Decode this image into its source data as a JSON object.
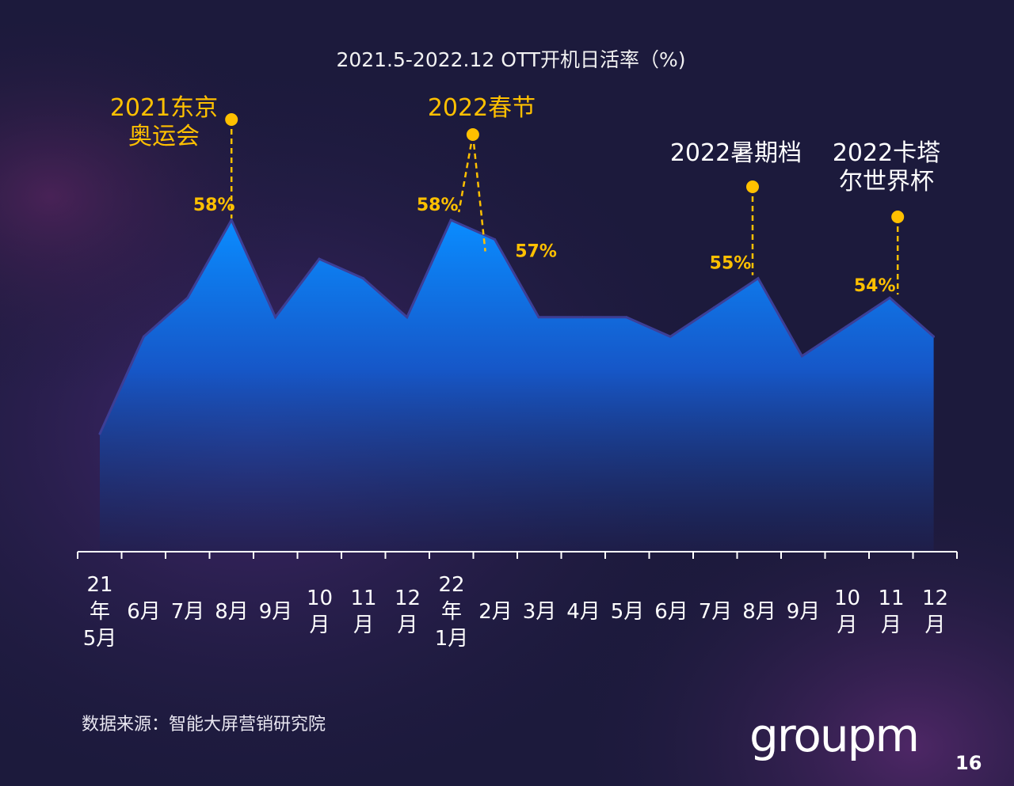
{
  "title": "2021.5-2022.12 OTT开机日活率（%)",
  "source": "数据来源：智能大屏营销研究院",
  "logo": "groupm",
  "page_number": "16",
  "colors": {
    "accent": "#ffc000",
    "area_top": "#0a8cff",
    "area_bottom": "#1e2050",
    "background": "#1c1a3c"
  },
  "chart_data": {
    "type": "area",
    "title": "2021.5-2022.12 OTT开机日活率（%)",
    "categories": [
      "21\n年\n5月",
      "6月",
      "7月",
      "8月",
      "9月",
      "10\n月",
      "11\n月",
      "12\n月",
      "22\n年\n1月",
      "2月",
      "3月",
      "4月",
      "5月",
      "6月",
      "7月",
      "8月",
      "9月",
      "10\n月",
      "11\n月",
      "12\n月"
    ],
    "values": [
      47,
      52,
      54,
      58,
      53,
      56,
      55,
      53,
      58,
      57,
      53,
      53,
      53,
      52,
      53.5,
      55,
      51,
      52.5,
      54,
      52
    ],
    "ylim": [
      40,
      63
    ],
    "grid": false,
    "data_labels": [
      {
        "index": 3,
        "text": "58%"
      },
      {
        "index": 8,
        "text": "58%"
      },
      {
        "index": 9,
        "text": "57%"
      },
      {
        "index": 15,
        "text": "55%"
      },
      {
        "index": 18,
        "text": "54%"
      }
    ],
    "annotations": [
      {
        "text": "2021东京\n奥运会",
        "index": 3,
        "color": "#ffc000"
      },
      {
        "text": "2022春节",
        "index": 8.5,
        "color": "#ffc000"
      },
      {
        "text": "2022暑期档",
        "index": 15,
        "color": "#ffffff"
      },
      {
        "text": "2022卡塔\n尔世界杯",
        "index": 18,
        "color": "#ffffff"
      }
    ]
  }
}
